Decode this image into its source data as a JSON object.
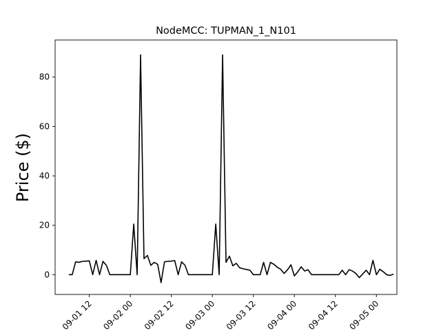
{
  "chart_data": {
    "type": "line",
    "title": "NodeMCC: TUPMAN_1_N101",
    "xlabel": "",
    "ylabel": "Price ($)",
    "x_axis_type": "date-hourly",
    "xlim": [
      "2023-09-01 02:00",
      "2023-09-05 06:00"
    ],
    "ylim": [
      -8,
      95
    ],
    "x_ticks": [
      "2023-09-01 12:00",
      "2023-09-02 00:00",
      "2023-09-02 12:00",
      "2023-09-03 00:00",
      "2023-09-03 12:00",
      "2023-09-04 00:00",
      "2023-09-04 12:00",
      "2023-09-05 00:00"
    ],
    "x_tick_labels": [
      "09-01 12",
      "09-02 00",
      "09-02 12",
      "09-03 00",
      "09-03 12",
      "09-04 00",
      "09-04 12",
      "09-05 00"
    ],
    "y_ticks": [
      0,
      20,
      40,
      60,
      80
    ],
    "y_tick_labels": [
      "0",
      "20",
      "40",
      "60",
      "80"
    ],
    "line_color": "#000000",
    "grid": false,
    "series": [
      {
        "x": [
          "2023-09-01 06:00",
          "2023-09-01 07:00",
          "2023-09-01 08:00",
          "2023-09-01 09:00",
          "2023-09-01 10:00",
          "2023-09-01 11:00",
          "2023-09-01 12:00",
          "2023-09-01 13:00",
          "2023-09-01 14:00",
          "2023-09-01 15:00",
          "2023-09-01 16:00",
          "2023-09-01 17:00",
          "2023-09-01 18:00",
          "2023-09-01 19:00",
          "2023-09-01 20:00",
          "2023-09-01 21:00",
          "2023-09-01 22:00",
          "2023-09-01 23:00",
          "2023-09-02 00:00",
          "2023-09-02 01:00",
          "2023-09-02 02:00",
          "2023-09-02 03:00",
          "2023-09-02 04:00",
          "2023-09-02 05:00",
          "2023-09-02 06:00",
          "2023-09-02 07:00",
          "2023-09-02 08:00",
          "2023-09-02 09:00",
          "2023-09-02 10:00",
          "2023-09-02 11:00",
          "2023-09-02 12:00",
          "2023-09-02 13:00",
          "2023-09-02 14:00",
          "2023-09-02 15:00",
          "2023-09-02 16:00",
          "2023-09-02 17:00",
          "2023-09-02 18:00",
          "2023-09-02 19:00",
          "2023-09-02 20:00",
          "2023-09-02 21:00",
          "2023-09-02 22:00",
          "2023-09-02 23:00",
          "2023-09-03 00:00",
          "2023-09-03 01:00",
          "2023-09-03 02:00",
          "2023-09-03 03:00",
          "2023-09-03 04:00",
          "2023-09-03 05:00",
          "2023-09-03 06:00",
          "2023-09-03 07:00",
          "2023-09-03 08:00",
          "2023-09-03 09:00",
          "2023-09-03 10:00",
          "2023-09-03 11:00",
          "2023-09-03 12:00",
          "2023-09-03 13:00",
          "2023-09-03 14:00",
          "2023-09-03 15:00",
          "2023-09-03 16:00",
          "2023-09-03 17:00",
          "2023-09-03 18:00",
          "2023-09-03 19:00",
          "2023-09-03 20:00",
          "2023-09-03 21:00",
          "2023-09-03 22:00",
          "2023-09-03 23:00",
          "2023-09-04 00:00",
          "2023-09-04 01:00",
          "2023-09-04 02:00",
          "2023-09-04 03:00",
          "2023-09-04 04:00",
          "2023-09-04 05:00",
          "2023-09-04 06:00",
          "2023-09-04 07:00",
          "2023-09-04 08:00",
          "2023-09-04 09:00",
          "2023-09-04 10:00",
          "2023-09-04 11:00",
          "2023-09-04 12:00",
          "2023-09-04 13:00",
          "2023-09-04 14:00",
          "2023-09-04 15:00",
          "2023-09-04 16:00",
          "2023-09-04 17:00",
          "2023-09-04 18:00",
          "2023-09-04 19:00",
          "2023-09-04 20:00",
          "2023-09-04 21:00",
          "2023-09-04 22:00",
          "2023-09-04 23:00",
          "2023-09-05 00:00",
          "2023-09-05 01:00",
          "2023-09-05 02:00",
          "2023-09-05 03:00",
          "2023-09-05 04:00",
          "2023-09-05 05:00"
        ],
        "y": [
          0,
          0,
          5.2,
          5.0,
          5.4,
          5.5,
          5.6,
          0,
          5.8,
          0,
          5.4,
          3.8,
          0,
          0,
          0,
          0,
          0,
          0,
          0,
          20.5,
          0,
          89,
          6.5,
          7.8,
          3.8,
          5.0,
          4.2,
          -3.2,
          5.2,
          5.4,
          5.5,
          5.7,
          0,
          5.2,
          3.8,
          0,
          0,
          0,
          0,
          0,
          0,
          0,
          0,
          20.5,
          0,
          89,
          5.0,
          7.5,
          3.6,
          4.6,
          2.8,
          2.4,
          2.1,
          1.8,
          0,
          0,
          0,
          5.0,
          0,
          5.0,
          4.2,
          3.0,
          2.2,
          0.5,
          2.0,
          4.0,
          -0.5,
          1.2,
          3.2,
          1.5,
          2.0,
          0,
          0,
          0,
          0,
          0,
          0,
          0,
          0,
          0,
          1.8,
          0,
          2.0,
          1.5,
          0.5,
          -1.2,
          0.3,
          1.8,
          0,
          5.8,
          0,
          2.2,
          1.2,
          0,
          -0.3,
          0.2
        ]
      }
    ]
  }
}
